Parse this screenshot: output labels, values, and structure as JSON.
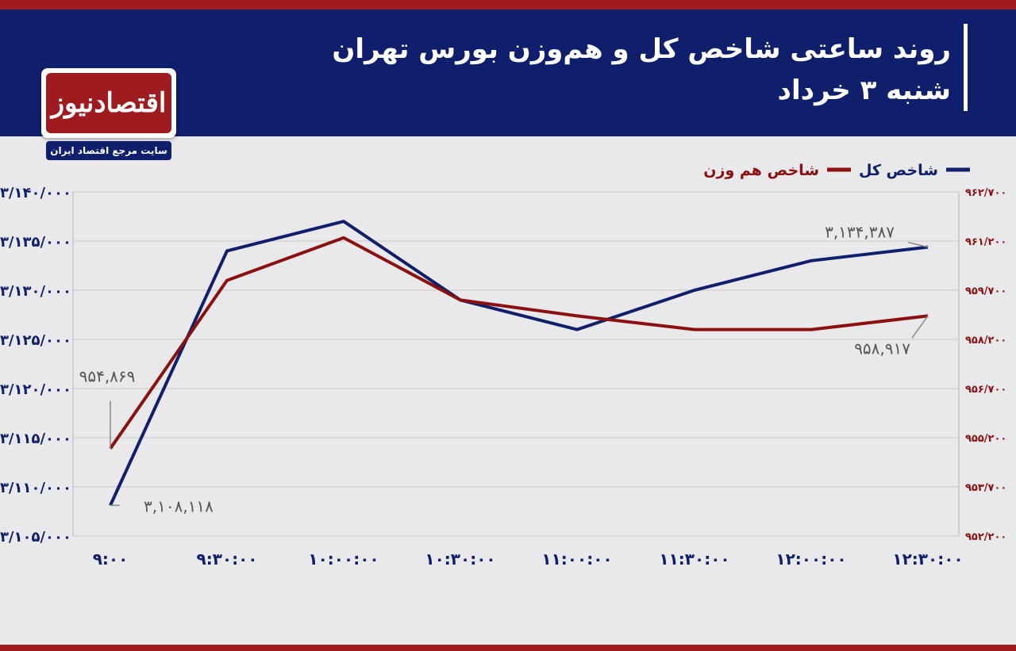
{
  "header": {
    "title_line1": "روند ساعتی شاخص کل و هم‌وزن بورس تهران",
    "title_line2": "شنبه ۳ خرداد"
  },
  "brand": {
    "logo_text": "اقتصادنیوز",
    "tagline": "سایت مرجع اقتصاد ایران"
  },
  "colors": {
    "header_bg": "#0f1f6b",
    "accent_red": "#9e1c20",
    "series_total": "#0f1f6b",
    "series_equal": "#8b1111"
  },
  "chart_data": {
    "type": "line",
    "x": [
      "۹:۰۰",
      "۹:۳۰:۰۰",
      "۱۰:۰۰:۰۰",
      "۱۰:۳۰:۰۰",
      "۱۱:۰۰:۰۰",
      "۱۱:۳۰:۰۰",
      "۱۲:۰۰:۰۰",
      "۱۲:۳۰:۰۰"
    ],
    "series": [
      {
        "name": "شاخص کل",
        "axis": "left",
        "values": [
          3108118,
          3134000,
          3137000,
          3129000,
          3126000,
          3130000,
          3133000,
          3134387
        ],
        "labels": [
          {
            "index": 0,
            "text": "۳,۱۰۸,۱۱۸"
          },
          {
            "index": 7,
            "text": "۳,۱۳۴,۳۸۷"
          }
        ]
      },
      {
        "name": "شاخص هم وزن",
        "axis": "right",
        "values": [
          954869,
          960000,
          961300,
          959400,
          958917,
          958500,
          958500,
          958917
        ],
        "labels": [
          {
            "index": 0,
            "text": "۹۵۴,۸۶۹"
          },
          {
            "index": 7,
            "text": "۹۵۸,۹۱۷"
          }
        ]
      }
    ],
    "y_left": {
      "min": 3105000,
      "max": 3140000,
      "ticks": [
        "۳/۱۰۵/۰۰۰",
        "۳/۱۱۰/۰۰۰",
        "۳/۱۱۵/۰۰۰",
        "۳/۱۲۰/۰۰۰",
        "۳/۱۲۵/۰۰۰",
        "۳/۱۳۰/۰۰۰",
        "۳/۱۳۵/۰۰۰",
        "۳/۱۴۰/۰۰۰"
      ]
    },
    "y_right": {
      "min": 952200,
      "max": 962700,
      "ticks": [
        "۹۵۲/۲۰۰",
        "۹۵۳/۷۰۰",
        "۹۵۵/۲۰۰",
        "۹۵۶/۷۰۰",
        "۹۵۸/۲۰۰",
        "۹۵۹/۷۰۰",
        "۹۶۱/۲۰۰",
        "۹۶۲/۷۰۰"
      ]
    },
    "grid": true,
    "legend": "top-right"
  }
}
